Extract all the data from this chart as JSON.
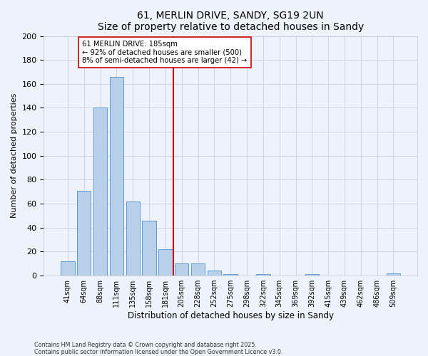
{
  "title": "61, MERLIN DRIVE, SANDY, SG19 2UN",
  "subtitle": "Size of property relative to detached houses in Sandy",
  "xlabel": "Distribution of detached houses by size in Sandy",
  "ylabel": "Number of detached properties",
  "bar_labels": [
    "41sqm",
    "64sqm",
    "88sqm",
    "111sqm",
    "135sqm",
    "158sqm",
    "181sqm",
    "205sqm",
    "228sqm",
    "252sqm",
    "275sqm",
    "298sqm",
    "322sqm",
    "345sqm",
    "369sqm",
    "392sqm",
    "415sqm",
    "439sqm",
    "462sqm",
    "486sqm",
    "509sqm"
  ],
  "bar_values": [
    12,
    71,
    140,
    166,
    62,
    46,
    22,
    10,
    10,
    4,
    1,
    0,
    1,
    0,
    0,
    1,
    0,
    0,
    0,
    0,
    2
  ],
  "bar_color": "#b8d0ea",
  "bar_edge_color": "#5b9bd5",
  "vline_x": 6.5,
  "vline_color": "#cc0000",
  "annotation_title": "61 MERLIN DRIVE: 185sqm",
  "annotation_line1": "← 92% of detached houses are smaller (500)",
  "annotation_line2": "8% of semi-detached houses are larger (42) →",
  "annotation_box_color": "#ffffff",
  "annotation_box_edge": "#cc0000",
  "ylim": [
    0,
    200
  ],
  "yticks": [
    0,
    20,
    40,
    60,
    80,
    100,
    120,
    140,
    160,
    180,
    200
  ],
  "footnote1": "Contains HM Land Registry data © Crown copyright and database right 2025.",
  "footnote2": "Contains public sector information licensed under the Open Government Licence v3.0.",
  "bg_color": "#eef2fb",
  "grid_color": "#c8cfe0"
}
